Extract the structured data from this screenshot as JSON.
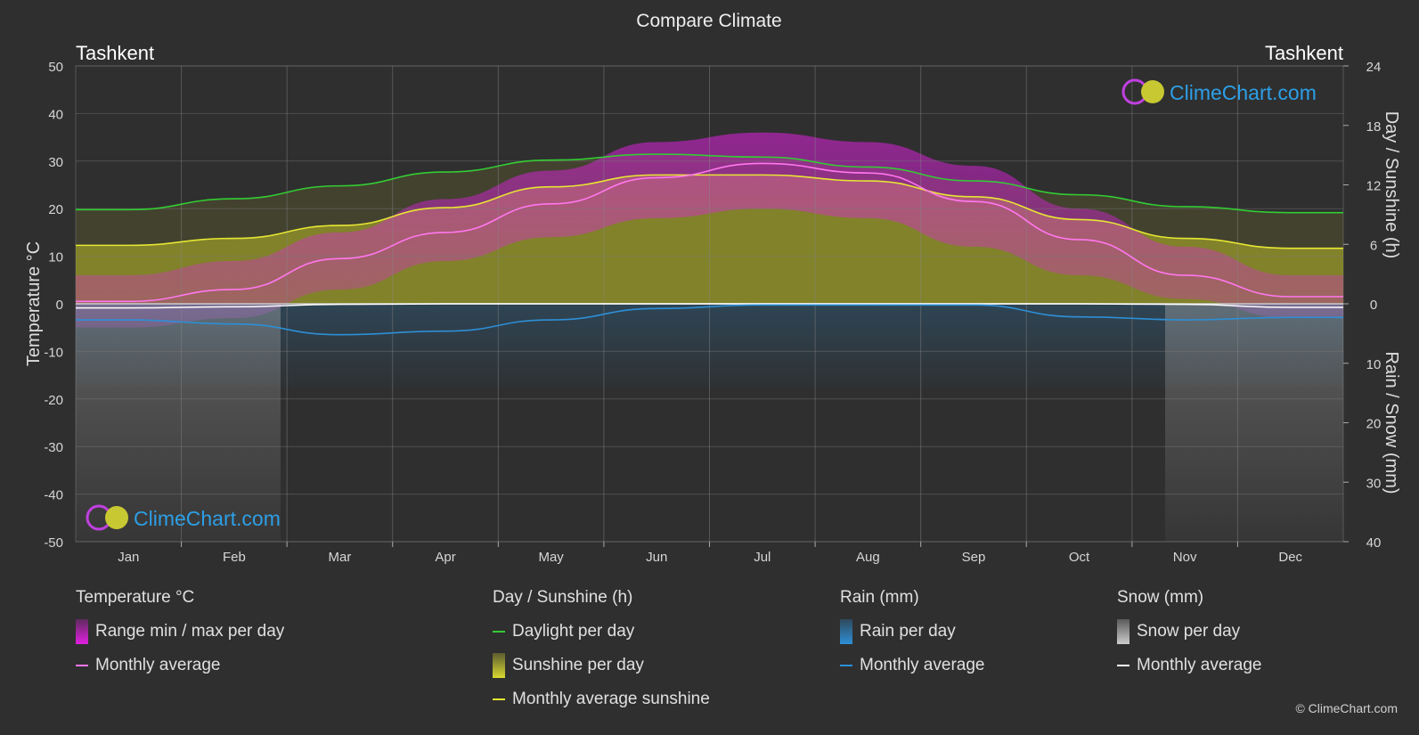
{
  "title": "Compare Climate",
  "city_left": "Tashkent",
  "city_right": "Tashkent",
  "watermark": "ClimeChart.com",
  "copyright": "© ClimeChart.com",
  "colors": {
    "background": "#2f2f2f",
    "daylight": "#33cc33",
    "sunshine_avg": "#e6e633",
    "temp_avg": "#ff77ee",
    "rain_avg": "#2d8fd6",
    "snow_avg": "#ffffff",
    "temp_range": "#e020e0",
    "sunshine_fill": "#9c9c2a"
  },
  "chart_data": {
    "type": "line",
    "months": [
      "Jan",
      "Feb",
      "Mar",
      "Apr",
      "May",
      "Jun",
      "Jul",
      "Aug",
      "Sep",
      "Oct",
      "Nov",
      "Dec"
    ],
    "y_left": {
      "label": "Temperature °C",
      "min": -50,
      "max": 50,
      "ticks": [
        50,
        40,
        30,
        20,
        10,
        0,
        -10,
        -20,
        -30,
        -40,
        -50
      ]
    },
    "y_right_top": {
      "label": "Day / Sunshine (h)",
      "min": 0,
      "max": 24,
      "ticks": [
        24,
        18,
        12,
        6,
        0
      ]
    },
    "y_right_bottom": {
      "label": "Rain / Snow (mm)",
      "min": 0,
      "max": 40,
      "ticks": [
        0,
        10,
        20,
        30,
        40
      ]
    },
    "series": [
      {
        "name": "Daylight per day",
        "unit": "h",
        "values": [
          9.5,
          10.6,
          11.9,
          13.3,
          14.5,
          15.1,
          14.8,
          13.8,
          12.4,
          11.0,
          9.8,
          9.2
        ]
      },
      {
        "name": "Monthly average sunshine",
        "unit": "h",
        "values": [
          5.9,
          6.6,
          7.9,
          9.7,
          11.8,
          13.0,
          13.0,
          12.4,
          10.8,
          8.5,
          6.6,
          5.6
        ]
      },
      {
        "name": "Temperature monthly average",
        "unit": "°C",
        "values": [
          0.5,
          3.0,
          9.5,
          15.0,
          21.0,
          26.5,
          29.5,
          27.5,
          21.5,
          13.5,
          6.0,
          1.5
        ]
      },
      {
        "name": "Temperature max per day",
        "unit": "°C",
        "values": [
          6,
          9,
          15,
          22,
          28,
          34,
          36,
          34,
          29,
          20,
          12,
          6
        ]
      },
      {
        "name": "Temperature min per day",
        "unit": "°C",
        "values": [
          -5,
          -3,
          3,
          9,
          14,
          18,
          20,
          18,
          12,
          6,
          1,
          -3
        ]
      },
      {
        "name": "Rain monthly average",
        "unit": "mm",
        "values": [
          2.7,
          3.4,
          5.2,
          4.6,
          2.7,
          0.8,
          0.2,
          0.2,
          0.2,
          2.2,
          2.7,
          2.3
        ]
      },
      {
        "name": "Snow monthly average",
        "unit": "mm",
        "values": [
          0.7,
          0.5,
          0.1,
          0,
          0,
          0,
          0,
          0,
          0,
          0,
          0.1,
          0.6
        ]
      }
    ]
  },
  "legend": [
    {
      "header": "Temperature °C",
      "items": [
        {
          "type": "box",
          "color": "#e020e0",
          "label": "Range min / max per day"
        },
        {
          "type": "line",
          "color": "#ff77ee",
          "label": "Monthly average"
        }
      ]
    },
    {
      "header": "Day / Sunshine (h)",
      "items": [
        {
          "type": "line",
          "color": "#33cc33",
          "label": "Daylight per day"
        },
        {
          "type": "box",
          "color": "#d8d830",
          "label": "Sunshine per day"
        },
        {
          "type": "line",
          "color": "#e6e633",
          "label": "Monthly average sunshine"
        }
      ]
    },
    {
      "header": "Rain (mm)",
      "items": [
        {
          "type": "box",
          "color": "#2d8fd6",
          "label": "Rain per day"
        },
        {
          "type": "line",
          "color": "#2d8fd6",
          "label": "Monthly average"
        }
      ]
    },
    {
      "header": "Snow (mm)",
      "items": [
        {
          "type": "box",
          "color": "#cccccc",
          "label": "Snow per day"
        },
        {
          "type": "line",
          "color": "#ffffff",
          "label": "Monthly average"
        }
      ]
    }
  ]
}
